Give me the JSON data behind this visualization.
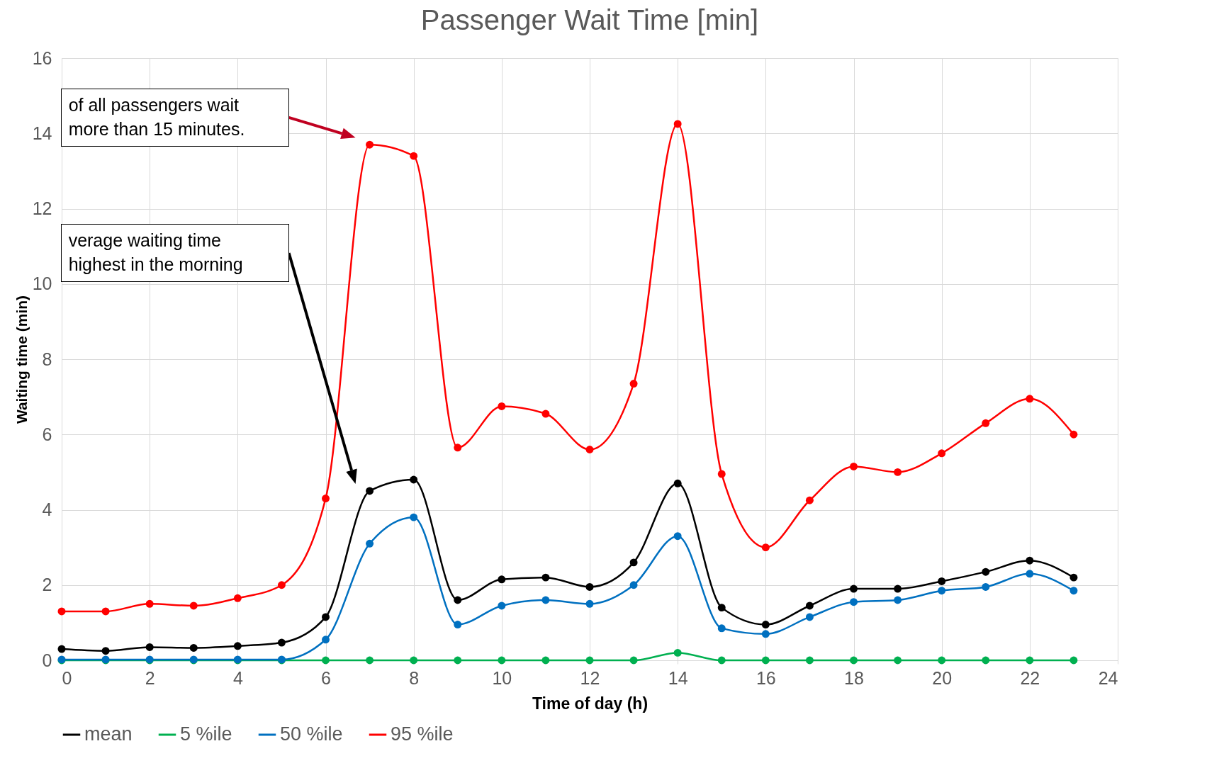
{
  "chart_data": {
    "type": "line",
    "title": "Passenger Wait Time [min]",
    "xlabel": "Time of day (h)",
    "ylabel": "Waiting time (min)",
    "x": [
      0,
      1,
      2,
      3,
      4,
      5,
      6,
      7,
      8,
      9,
      10,
      11,
      12,
      13,
      14,
      15,
      16,
      17,
      18,
      19,
      20,
      21,
      22,
      23
    ],
    "series": [
      {
        "name": "mean",
        "color": "#000000",
        "values": [
          0.3,
          0.25,
          0.35,
          0.33,
          0.38,
          0.47,
          1.15,
          4.5,
          4.8,
          1.6,
          2.15,
          2.2,
          1.95,
          2.6,
          4.7,
          1.4,
          0.95,
          1.45,
          1.9,
          1.9,
          2.1,
          2.35,
          2.65,
          2.2
        ]
      },
      {
        "name": "5 %ile",
        "color": "#00b050",
        "values": [
          0,
          0,
          0,
          0,
          0,
          0,
          0,
          0,
          0,
          0,
          0,
          0,
          0,
          0,
          0.2,
          0,
          0,
          0,
          0,
          0,
          0,
          0,
          0,
          0
        ]
      },
      {
        "name": "50 %ile",
        "color": "#0070c0",
        "values": [
          0.02,
          0.02,
          0.02,
          0.02,
          0.02,
          0.02,
          0.55,
          3.1,
          3.8,
          0.95,
          1.45,
          1.6,
          1.5,
          2.0,
          3.3,
          0.85,
          0.7,
          1.15,
          1.55,
          1.6,
          1.85,
          1.95,
          2.3,
          1.85
        ]
      },
      {
        "name": "95 %ile",
        "color": "#ff0000",
        "values": [
          1.3,
          1.3,
          1.5,
          1.45,
          1.65,
          2.0,
          4.3,
          13.7,
          13.4,
          5.65,
          6.75,
          6.55,
          5.6,
          7.35,
          14.25,
          4.95,
          3.0,
          4.25,
          5.15,
          5.0,
          5.5,
          6.3,
          6.95,
          6.0
        ]
      }
    ],
    "xlim": [
      0,
      24
    ],
    "xticks": [
      0,
      2,
      4,
      6,
      8,
      10,
      12,
      14,
      16,
      18,
      20,
      22,
      24
    ],
    "ylim": [
      0,
      16
    ],
    "yticks": [
      0,
      2,
      4,
      6,
      8,
      10,
      12,
      14,
      16
    ],
    "grid": true,
    "legend": "bottom",
    "marker": "circle",
    "line_style": "solid",
    "annotations": [
      "of all passengers wait more than 15 minutes.",
      "verage waiting time highest in the morning"
    ]
  }
}
